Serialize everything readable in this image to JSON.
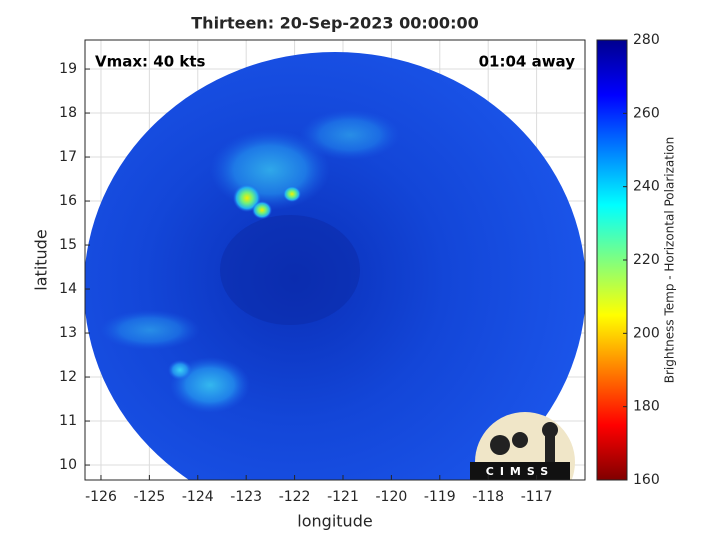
{
  "chart_data": {
    "type": "image",
    "title": "Thirteen: 20-Sep-2023 00:00:00",
    "xlabel": "longitude",
    "ylabel": "latitude",
    "xlim": [
      -126.33,
      -116
    ],
    "ylim": [
      9.66,
      19.66
    ],
    "xticks": [
      -126,
      -125,
      -124,
      -123,
      -122,
      -121,
      -120,
      -119,
      -118,
      -117
    ],
    "yticks": [
      10,
      11,
      12,
      13,
      14,
      15,
      16,
      17,
      18,
      19
    ],
    "grid": true,
    "annotations": [
      "Vmax: 40 kts",
      "01:04 away"
    ],
    "logo_text": "CIMSS",
    "colorbar": {
      "label": "Brightness Temp - Horizontal Polarization",
      "lim": [
        160,
        280
      ],
      "ticks": [
        160,
        180,
        200,
        220,
        240,
        260,
        280
      ],
      "colormap": "jet"
    }
  }
}
